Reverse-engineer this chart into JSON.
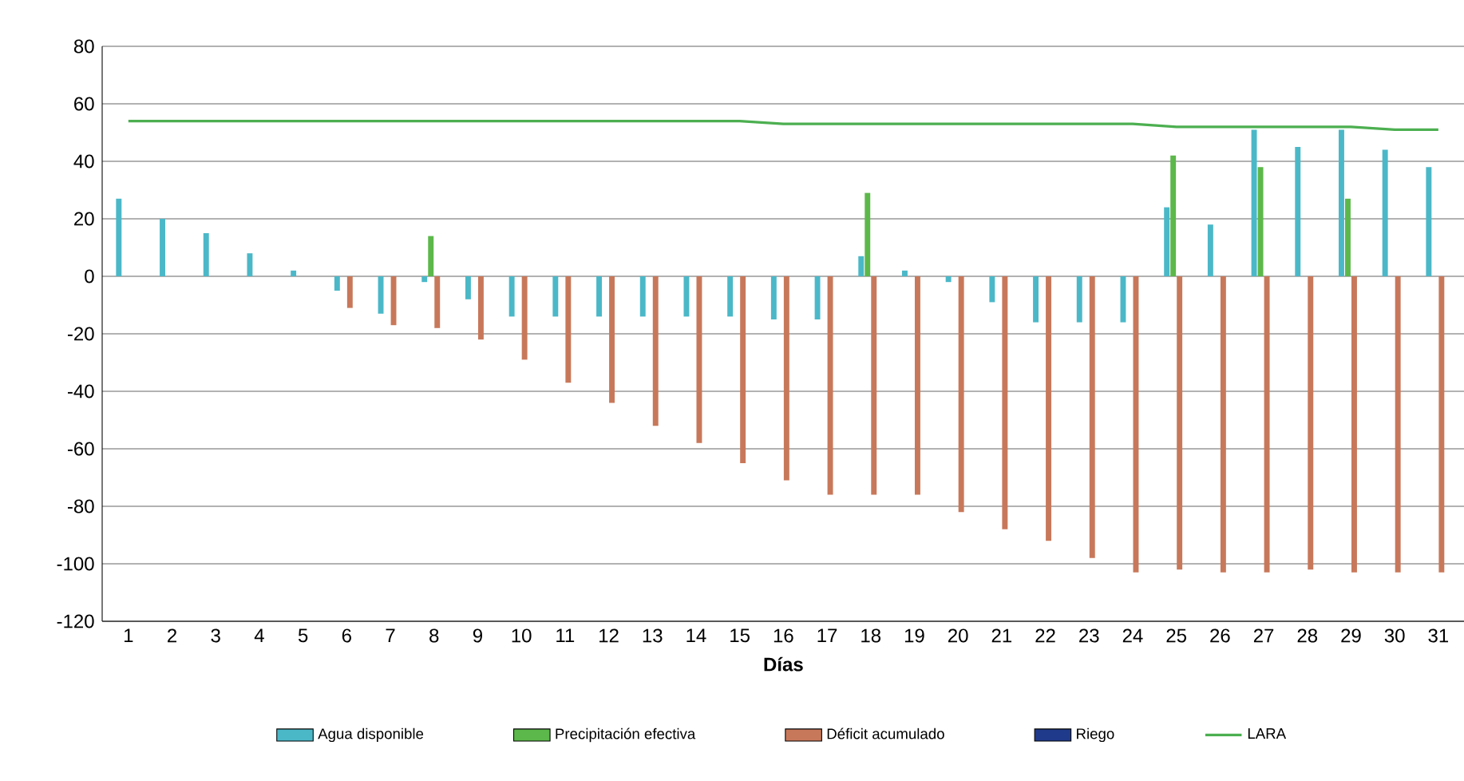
{
  "chart_data": {
    "type": "bar",
    "xlabel": "Días",
    "categories": [
      "1",
      "2",
      "3",
      "4",
      "5",
      "6",
      "7",
      "8",
      "9",
      "10",
      "11",
      "12",
      "13",
      "14",
      "15",
      "16",
      "17",
      "18",
      "19",
      "20",
      "21",
      "22",
      "23",
      "24",
      "25",
      "26",
      "27",
      "28",
      "29",
      "30",
      "31"
    ],
    "series": [
      {
        "name": "Agua disponible",
        "color": "#4bb8c8",
        "values": [
          27,
          20,
          15,
          8,
          2,
          -5,
          -13,
          -2,
          -8,
          -14,
          -14,
          -14,
          -14,
          -14,
          -14,
          -15,
          -15,
          7,
          2,
          -2,
          -9,
          -16,
          -16,
          -16,
          24,
          18,
          51,
          45,
          51,
          44,
          38
        ]
      },
      {
        "name": "Precipitación efectiva",
        "color": "#5cb84a",
        "values": [
          0,
          0,
          0,
          0,
          0,
          0,
          0,
          14,
          0,
          0,
          0,
          0,
          0,
          0,
          0,
          0,
          0,
          29,
          0,
          0,
          0,
          0,
          0,
          0,
          42,
          0,
          38,
          0,
          27,
          0,
          0
        ]
      },
      {
        "name": "Déficit acumulado",
        "color": "#c8785a",
        "values": [
          0,
          0,
          0,
          0,
          0,
          -11,
          -17,
          -18,
          -22,
          -29,
          -37,
          -44,
          -52,
          -58,
          -65,
          -71,
          -76,
          -76,
          -76,
          -82,
          -88,
          -92,
          -98,
          -103,
          -102,
          -103,
          -103,
          -102,
          -103,
          -103,
          -103
        ]
      },
      {
        "name": "Riego",
        "color": "#1f3a8a",
        "values": [
          0,
          0,
          0,
          0,
          0,
          0,
          0,
          0,
          0,
          0,
          0,
          0,
          0,
          0,
          0,
          0,
          0,
          0,
          0,
          0,
          0,
          0,
          0,
          0,
          0,
          0,
          0,
          0,
          0,
          0,
          0
        ]
      },
      {
        "name": "LARA",
        "type": "line",
        "color": "#4caf50",
        "values": [
          54,
          54,
          54,
          54,
          54,
          54,
          54,
          54,
          54,
          54,
          54,
          54,
          54,
          54,
          54,
          53,
          53,
          53,
          53,
          53,
          53,
          53,
          53,
          53,
          52,
          52,
          52,
          52,
          52,
          51,
          51
        ]
      }
    ],
    "ylim": [
      -120,
      80
    ],
    "yticks": [
      -120,
      -100,
      -80,
      -60,
      -40,
      -20,
      0,
      20,
      40,
      60,
      80
    ],
    "grid": "y",
    "legend": "bottom"
  }
}
